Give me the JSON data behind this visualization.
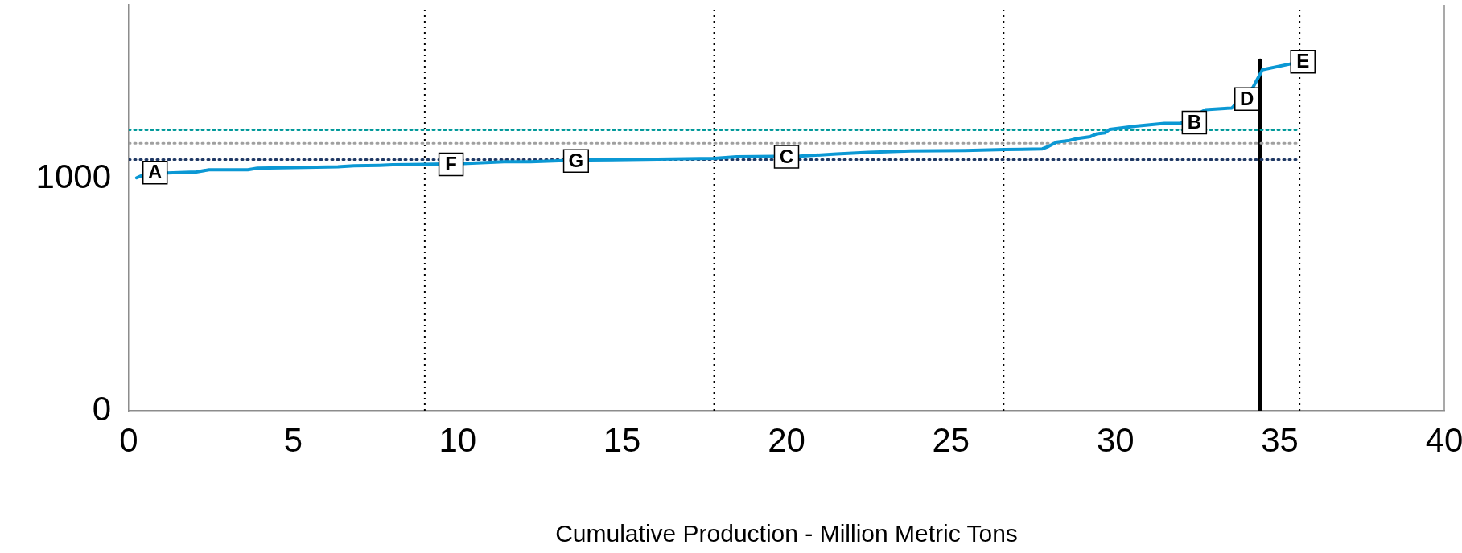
{
  "chart_data": {
    "type": "line",
    "xlabel": "Cumulative Production - Million Metric Tons",
    "xlim": [
      0,
      40
    ],
    "xticks": [
      0,
      5,
      10,
      15,
      20,
      25,
      30,
      35,
      40
    ],
    "ylim": [
      0,
      1750
    ],
    "yticks": [
      0,
      1000
    ],
    "grid": false,
    "legend": false,
    "marker": "none",
    "series": [
      {
        "color": "#0b98d4",
        "line_style": "solid",
        "x": [
          0.24,
          0.39,
          1.17,
          2.05,
          2.44,
          3.62,
          3.91,
          5.38,
          6.36,
          6.85,
          7.63,
          8.02,
          8.99,
          10.17,
          11.41,
          12.22,
          13.25,
          13.99,
          15.65,
          17.8,
          18.48,
          19.66,
          20.39,
          21.52,
          22.49,
          23.77,
          25.43,
          26.63,
          27.78,
          27.97,
          28.22,
          28.56,
          28.85,
          29.24,
          29.44,
          29.68,
          29.83,
          30.61,
          31.49,
          31.98,
          32.74,
          33.54,
          34.18,
          34.47,
          35.31
        ],
        "values": [
          1004,
          1013,
          1025,
          1029,
          1039,
          1039,
          1046,
          1049,
          1052,
          1056,
          1058,
          1060,
          1062,
          1066,
          1073,
          1073,
          1079,
          1081,
          1084,
          1088,
          1095,
          1097,
          1098,
          1107,
          1114,
          1120,
          1122,
          1126,
          1129,
          1140,
          1158,
          1164,
          1174,
          1182,
          1194,
          1198,
          1213,
          1227,
          1239,
          1239,
          1298,
          1305,
          1393,
          1470,
          1495
        ]
      },
      {
        "color": "#00999a",
        "line_style": "dotted",
        "x": [
          0,
          35.6
        ],
        "values": [
          1211,
          1211
        ]
      },
      {
        "color": "#a0a0a0",
        "line_style": "dotted",
        "x": [
          0,
          35.6
        ],
        "values": [
          1153,
          1153
        ]
      },
      {
        "color": "#1f3864",
        "line_style": "dotted",
        "x": [
          0,
          35.6
        ],
        "values": [
          1083,
          1083
        ]
      },
      {
        "color": "#000000",
        "line_style": "solid",
        "x": [
          34.4,
          34.4
        ],
        "values": [
          0,
          1510
        ]
      }
    ],
    "ref_lines": [
      {
        "axis": "x",
        "value": 9,
        "color": "#000000",
        "line_style": "dotted"
      },
      {
        "axis": "x",
        "value": 17.8,
        "color": "#000000",
        "line_style": "dotted"
      },
      {
        "axis": "x",
        "value": 26.6,
        "color": "#000000",
        "line_style": "dotted"
      },
      {
        "axis": "x",
        "value": 35.6,
        "color": "#000000",
        "line_style": "dotted"
      }
    ],
    "annotations": [
      {
        "text": "A",
        "x": 0.8,
        "y": 1027
      },
      {
        "text": "F",
        "x": 9.8,
        "y": 1062
      },
      {
        "text": "G",
        "x": 13.6,
        "y": 1077
      },
      {
        "text": "C",
        "x": 20,
        "y": 1095
      },
      {
        "text": "B",
        "x": 32.4,
        "y": 1242
      },
      {
        "text": "D",
        "x": 34,
        "y": 1344
      },
      {
        "text": "E",
        "x": 35.7,
        "y": 1505
      }
    ]
  }
}
